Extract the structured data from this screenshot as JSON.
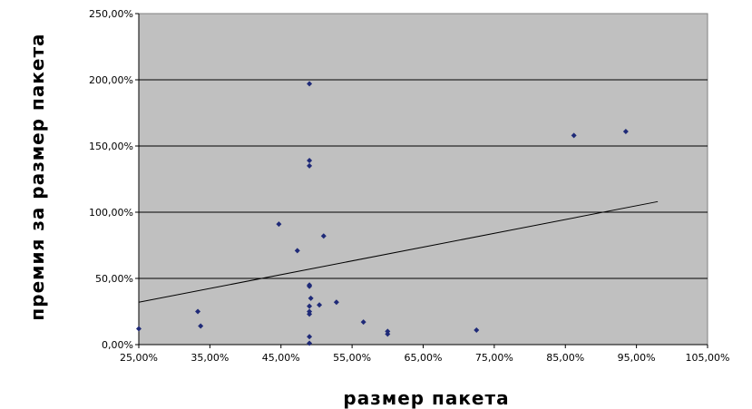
{
  "chart_data": {
    "type": "scatter",
    "title": "",
    "xlabel": "размер пакета",
    "ylabel": "премия за размер пакета",
    "xlim": [
      0.25,
      1.05
    ],
    "ylim": [
      0,
      2.5
    ],
    "x_ticks": [
      0.25,
      0.35,
      0.45,
      0.55,
      0.65,
      0.75,
      0.85,
      0.95,
      1.05
    ],
    "x_tick_labels": [
      "25,00%",
      "35,00%",
      "45,00%",
      "55,00%",
      "65,00%",
      "75,00%",
      "85,00%",
      "95,00%",
      "105,00%"
    ],
    "y_ticks": [
      0,
      0.5,
      1.0,
      1.5,
      2.0,
      2.5
    ],
    "y_tick_labels": [
      "0,00%",
      "50,00%",
      "100,00%",
      "150,00%",
      "200,00%",
      "250,00%"
    ],
    "grid": "horizontal",
    "legend": "none",
    "colors": {
      "plot_area": "#c0c0c0",
      "marker": "#1f2a78",
      "trendline": "#000000",
      "gridline": "#000000"
    },
    "points": [
      {
        "x": 0.25,
        "y": 0.12
      },
      {
        "x": 0.333,
        "y": 0.25
      },
      {
        "x": 0.337,
        "y": 0.14
      },
      {
        "x": 0.447,
        "y": 0.91
      },
      {
        "x": 0.473,
        "y": 0.71
      },
      {
        "x": 0.49,
        "y": 1.97
      },
      {
        "x": 0.49,
        "y": 1.39
      },
      {
        "x": 0.49,
        "y": 1.35
      },
      {
        "x": 0.49,
        "y": 0.45
      },
      {
        "x": 0.49,
        "y": 0.44
      },
      {
        "x": 0.492,
        "y": 0.35
      },
      {
        "x": 0.49,
        "y": 0.29
      },
      {
        "x": 0.49,
        "y": 0.25
      },
      {
        "x": 0.49,
        "y": 0.23
      },
      {
        "x": 0.49,
        "y": 0.06
      },
      {
        "x": 0.49,
        "y": 0.01
      },
      {
        "x": 0.504,
        "y": 0.3
      },
      {
        "x": 0.51,
        "y": 0.82
      },
      {
        "x": 0.528,
        "y": 0.32
      },
      {
        "x": 0.566,
        "y": 0.17
      },
      {
        "x": 0.6,
        "y": 0.08
      },
      {
        "x": 0.6,
        "y": 0.1
      },
      {
        "x": 0.725,
        "y": 0.11
      },
      {
        "x": 0.862,
        "y": 1.58
      },
      {
        "x": 0.935,
        "y": 1.61
      }
    ],
    "trendline": {
      "type": "linear",
      "x": [
        0.25,
        0.98
      ],
      "y": [
        0.32,
        1.08
      ]
    }
  }
}
